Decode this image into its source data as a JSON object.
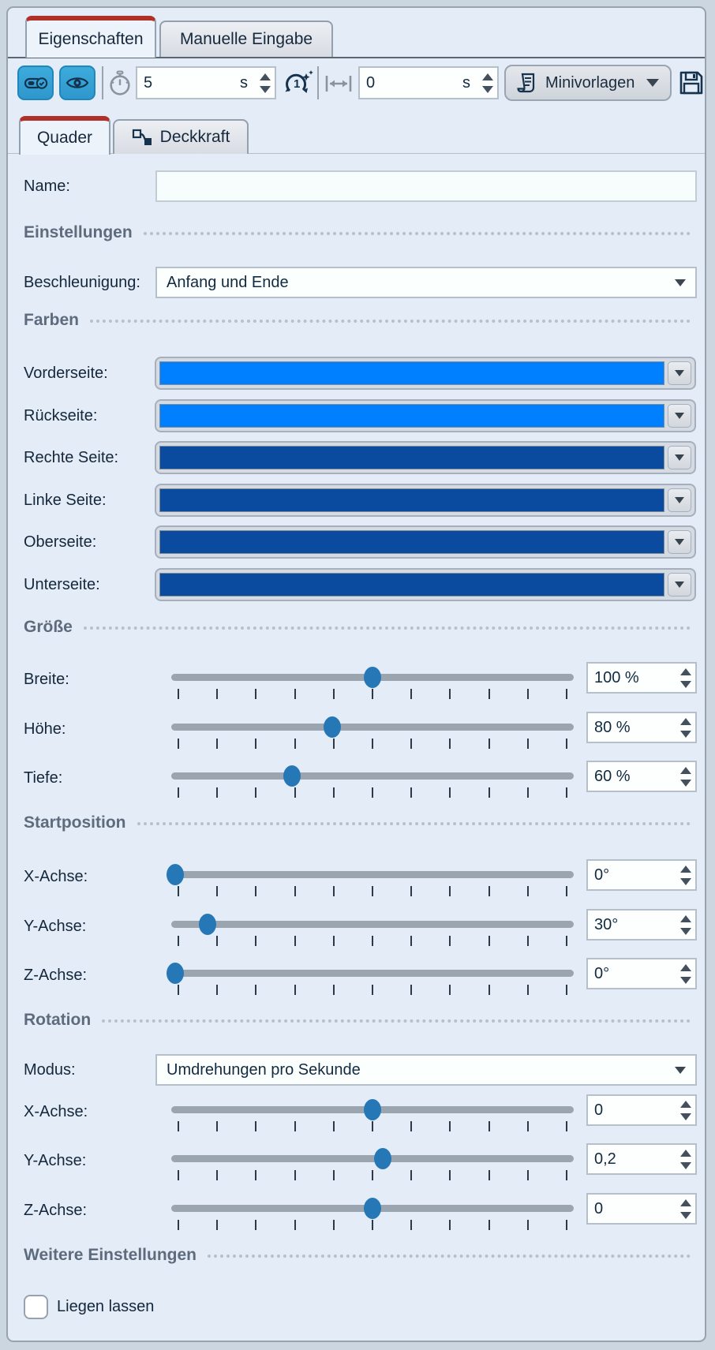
{
  "tabs": {
    "main": [
      {
        "label": "Eigenschaften",
        "active": true
      },
      {
        "label": "Manuelle Eingabe",
        "active": false
      }
    ],
    "sub": [
      {
        "label": "Quader",
        "active": true
      },
      {
        "label": "Deckkraft",
        "active": false
      }
    ]
  },
  "toolbar": {
    "duration": {
      "value": "5",
      "unit": "s"
    },
    "delay": {
      "value": "0",
      "unit": "s"
    },
    "templates_label": "Minivorlagen",
    "icons": {
      "toggle_button": "toggle-check-icon",
      "visibility_button": "eye-icon",
      "duration_field": "stopwatch-icon",
      "smart_duration": "rotate-once-sparkle-icon",
      "delay_field": "width-resize-icon",
      "templates_button": "scroll-icon",
      "save_button": "save-floppy-icon",
      "opacity_tab": "keyframe-curve-icon"
    }
  },
  "theme": {
    "accent_red": "#b03028",
    "toolbar_button_blue": "#36a2d6",
    "slider_thumb_blue": "#2677b5"
  },
  "form": {
    "name": {
      "label": "Name:",
      "value": ""
    },
    "sections": [
      {
        "title": "Einstellungen"
      },
      {
        "title": "Farben"
      },
      {
        "title": "Größe"
      },
      {
        "title": "Startposition"
      },
      {
        "title": "Rotation"
      },
      {
        "title": "Weitere Einstellungen"
      }
    ],
    "acceleration": {
      "label": "Beschleunigung:",
      "value": "Anfang und Ende"
    },
    "colors": [
      {
        "label": "Vorderseite:",
        "hex": "#0080fe"
      },
      {
        "label": "Rückseite:",
        "hex": "#0080fe"
      },
      {
        "label": "Rechte Seite:",
        "hex": "#0a4ba0"
      },
      {
        "label": "Linke Seite:",
        "hex": "#0a4ba0"
      },
      {
        "label": "Oberseite:",
        "hex": "#0a4ba0"
      },
      {
        "label": "Unterseite:",
        "hex": "#0a4ba0"
      }
    ],
    "size_sliders": [
      {
        "label": "Breite:",
        "value": "100 %",
        "pct": 50
      },
      {
        "label": "Höhe:",
        "value": "80 %",
        "pct": 40
      },
      {
        "label": "Tiefe:",
        "value": "60 %",
        "pct": 30
      }
    ],
    "start_sliders": [
      {
        "label": "X-Achse:",
        "value": "0°",
        "pct": 1
      },
      {
        "label": "Y-Achse:",
        "value": "30°",
        "pct": 9
      },
      {
        "label": "Z-Achse:",
        "value": "0°",
        "pct": 1
      }
    ],
    "rotation": {
      "mode_label": "Modus:",
      "mode_value": "Umdrehungen pro Sekunde",
      "sliders": [
        {
          "label": "X-Achse:",
          "value": "0",
          "pct": 50
        },
        {
          "label": "Y-Achse:",
          "value": "0,2",
          "pct": 52.5
        },
        {
          "label": "Z-Achse:",
          "value": "0",
          "pct": 50
        }
      ]
    },
    "other": {
      "checkbox_label": "Liegen lassen",
      "checked": false
    }
  }
}
